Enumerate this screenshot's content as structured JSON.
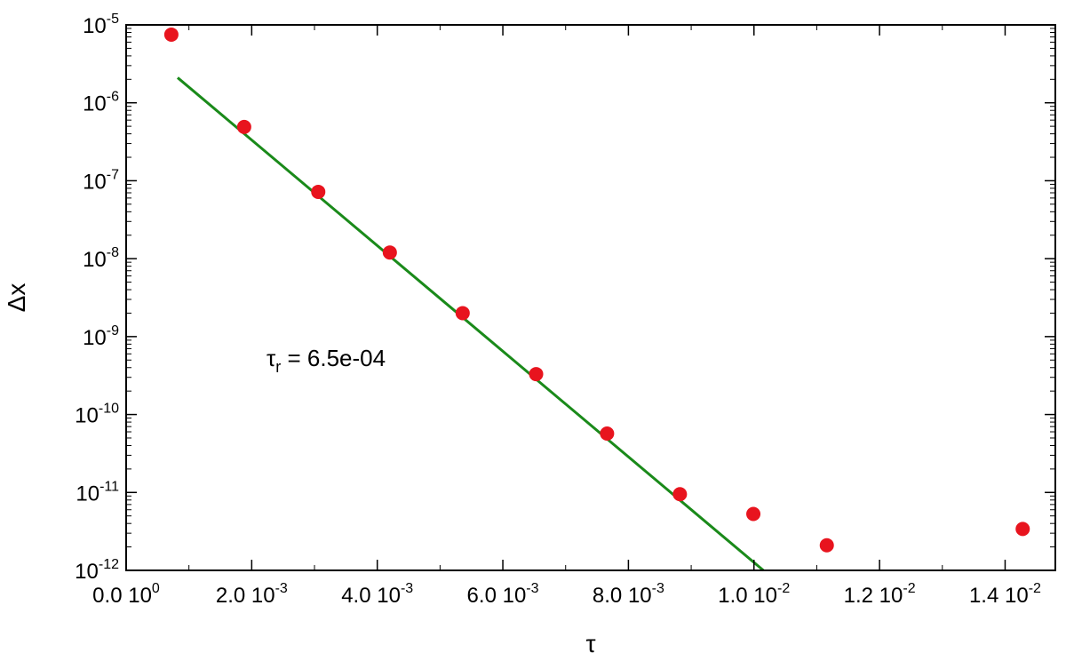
{
  "chart_data": {
    "type": "scatter",
    "title": "",
    "xlabel": "τ",
    "ylabel": "Δx",
    "xlim": [
      0,
      0.0148
    ],
    "ylim": [
      1e-12,
      1e-05
    ],
    "yscale": "log",
    "grid": false,
    "x_ticks": [
      {
        "value": 0,
        "mantissa": "0.0",
        "base": "10",
        "exp": "0"
      },
      {
        "value": 0.002,
        "mantissa": "2.0",
        "base": "10",
        "exp": "-3"
      },
      {
        "value": 0.004,
        "mantissa": "4.0",
        "base": "10",
        "exp": "-3"
      },
      {
        "value": 0.006,
        "mantissa": "6.0",
        "base": "10",
        "exp": "-3"
      },
      {
        "value": 0.008,
        "mantissa": "8.0",
        "base": "10",
        "exp": "-3"
      },
      {
        "value": 0.01,
        "mantissa": "1.0",
        "base": "10",
        "exp": "-2"
      },
      {
        "value": 0.012,
        "mantissa": "1.2",
        "base": "10",
        "exp": "-2"
      },
      {
        "value": 0.014,
        "mantissa": "1.4",
        "base": "10",
        "exp": "-2"
      }
    ],
    "y_ticks": [
      {
        "value": 1e-05,
        "base": "10",
        "exp": "-5"
      },
      {
        "value": 1e-06,
        "base": "10",
        "exp": "-6"
      },
      {
        "value": 1e-07,
        "base": "10",
        "exp": "-7"
      },
      {
        "value": 1e-08,
        "base": "10",
        "exp": "-8"
      },
      {
        "value": 1e-09,
        "base": "10",
        "exp": "-9"
      },
      {
        "value": 1e-10,
        "base": "10",
        "exp": "-10"
      },
      {
        "value": 1e-11,
        "base": "10",
        "exp": "-11"
      },
      {
        "value": 1e-12,
        "base": "10",
        "exp": "-12"
      }
    ],
    "series": [
      {
        "kind": "points",
        "color": "#e8141e",
        "x": [
          0.00072,
          0.00188,
          0.00306,
          0.0042,
          0.00536,
          0.00653,
          0.00766,
          0.00882,
          0.00999,
          0.01116,
          0.01428
        ],
        "y": [
          7.5e-06,
          4.9e-07,
          7.2e-08,
          1.2e-08,
          2e-09,
          3.3e-10,
          5.7e-11,
          9.5e-12,
          5.3e-12,
          2.1e-12,
          3.4e-12
        ]
      },
      {
        "kind": "fit-line",
        "color": "#1a8a1a",
        "x": [
          0.00082,
          0.01015
        ],
        "y": [
          2.1e-06,
          1e-12
        ]
      }
    ],
    "annotation": {
      "symbol": "τ",
      "subscript": "r",
      "text": " = 6.5e-04"
    }
  }
}
